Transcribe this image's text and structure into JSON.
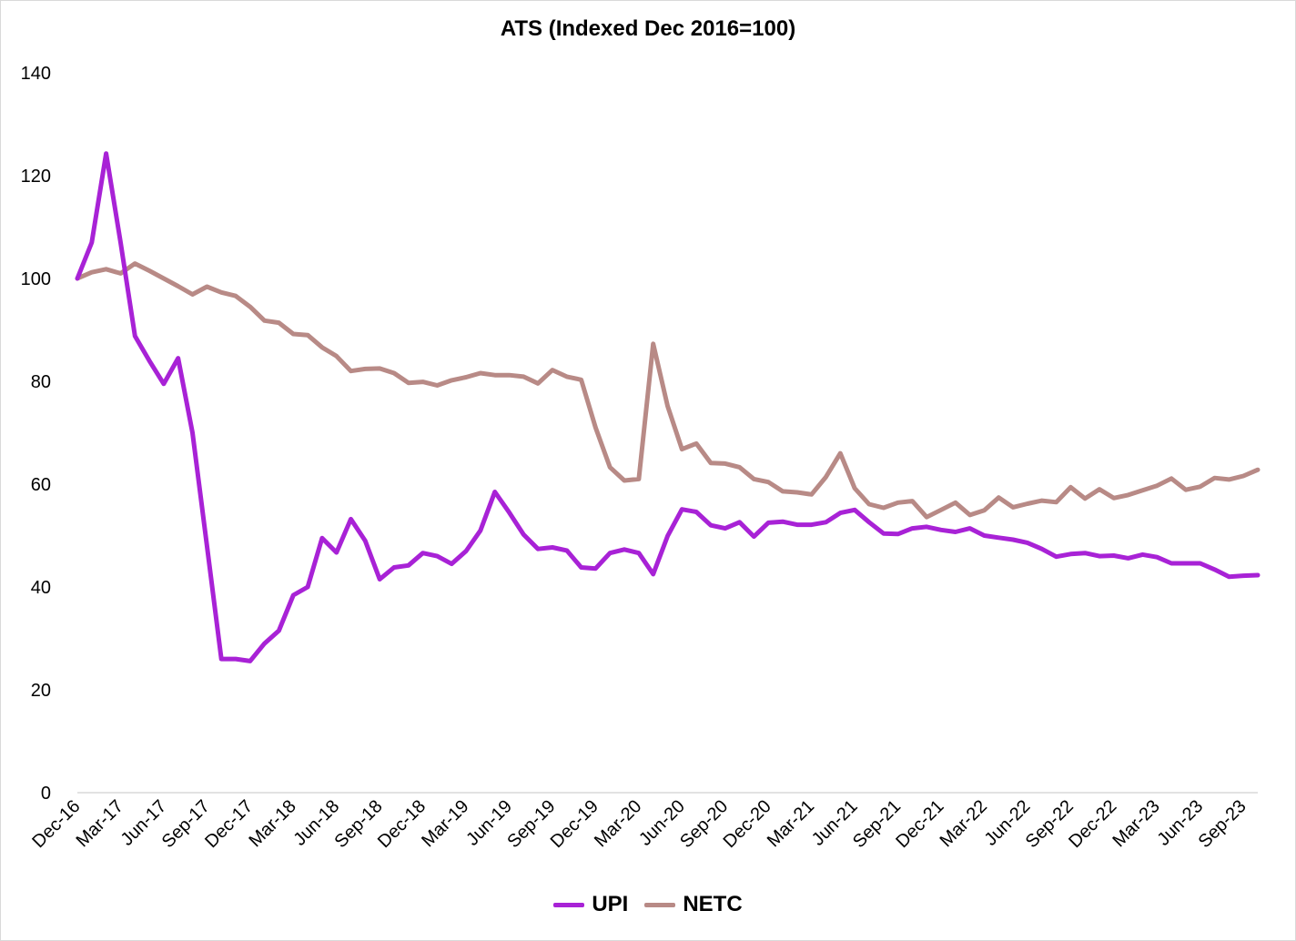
{
  "chart_data": {
    "type": "line",
    "title": "ATS (Indexed Dec 2016=100)",
    "xlabel": "",
    "ylabel": "",
    "ylim": [
      0,
      140
    ],
    "yticks": [
      0,
      20,
      40,
      60,
      80,
      100,
      120,
      140
    ],
    "grid": false,
    "legend_position": "bottom",
    "x_tick_labels": [
      "Dec-16",
      "Mar-17",
      "Jun-17",
      "Sep-17",
      "Dec-17",
      "Mar-18",
      "Jun-18",
      "Sep-18",
      "Dec-18",
      "Mar-19",
      "Jun-19",
      "Sep-19",
      "Dec-19",
      "Mar-20",
      "Jun-20",
      "Sep-20",
      "Dec-20",
      "Mar-21",
      "Jun-21",
      "Sep-21",
      "Dec-21",
      "Mar-22",
      "Jun-22",
      "Sep-22",
      "Dec-22",
      "Mar-23",
      "Jun-23",
      "Sep-23"
    ],
    "x": [
      "Dec-16",
      "Jan-17",
      "Feb-17",
      "Mar-17",
      "Apr-17",
      "May-17",
      "Jun-17",
      "Jul-17",
      "Aug-17",
      "Sep-17",
      "Oct-17",
      "Nov-17",
      "Dec-17",
      "Jan-18",
      "Feb-18",
      "Mar-18",
      "Apr-18",
      "May-18",
      "Jun-18",
      "Jul-18",
      "Aug-18",
      "Sep-18",
      "Oct-18",
      "Nov-18",
      "Dec-18",
      "Jan-19",
      "Feb-19",
      "Mar-19",
      "Apr-19",
      "May-19",
      "Jun-19",
      "Jul-19",
      "Aug-19",
      "Sep-19",
      "Oct-19",
      "Nov-19",
      "Dec-19",
      "Jan-20",
      "Feb-20",
      "Mar-20",
      "Apr-20",
      "May-20",
      "Jun-20",
      "Jul-20",
      "Aug-20",
      "Sep-20",
      "Oct-20",
      "Nov-20",
      "Dec-20",
      "Jan-21",
      "Feb-21",
      "Mar-21",
      "Apr-21",
      "May-21",
      "Jun-21",
      "Jul-21",
      "Aug-21",
      "Sep-21",
      "Oct-21",
      "Nov-21",
      "Dec-21",
      "Jan-22",
      "Feb-22",
      "Mar-22",
      "Apr-22",
      "May-22",
      "Jun-22",
      "Jul-22",
      "Aug-22",
      "Sep-22",
      "Oct-22",
      "Nov-22",
      "Dec-22",
      "Jan-23",
      "Feb-23",
      "Mar-23",
      "Apr-23",
      "May-23",
      "Jun-23",
      "Jul-23",
      "Aug-23",
      "Sep-23",
      "Oct-23"
    ],
    "series": [
      {
        "name": "UPI",
        "color": "#a822d6",
        "values": [
          100,
          107,
          124.3,
          107,
          88.8,
          84,
          79.5,
          84.5,
          70,
          48,
          26,
          26,
          25.6,
          29,
          31.5,
          38.4,
          40,
          49.5,
          46.7,
          53.2,
          49,
          41.5,
          43.8,
          44.2,
          46.6,
          46,
          44.5,
          47,
          51,
          58.5,
          54.5,
          50.2,
          47.4,
          47.7,
          47.1,
          43.8,
          43.6,
          46.6,
          47.3,
          46.6,
          42.5,
          49.9,
          55.1,
          54.6,
          52,
          51.4,
          52.6,
          49.8,
          52.5,
          52.7,
          52.1,
          52.1,
          52.6,
          54.4,
          55,
          52.6,
          50.4,
          50.3,
          51.4,
          51.7,
          51.1,
          50.7,
          51.4,
          50,
          49.6,
          49.2,
          48.6,
          47.4,
          45.9,
          46.4,
          46.6,
          46,
          46.1,
          45.6,
          46.3,
          45.8,
          44.6,
          44.6,
          44.6,
          43.4,
          42,
          42.2,
          42.3
        ]
      },
      {
        "name": "NETC",
        "color": "#b88a86",
        "values": [
          100,
          101.2,
          101.8,
          101,
          102.9,
          101.5,
          100,
          98.5,
          96.9,
          98.4,
          97.3,
          96.6,
          94.5,
          91.8,
          91.4,
          89.2,
          89,
          86.6,
          84.9,
          82,
          82.4,
          82.5,
          81.6,
          79.7,
          79.9,
          79.2,
          80.2,
          80.8,
          81.6,
          81.2,
          81.2,
          80.9,
          79.6,
          82.2,
          80.9,
          80.3,
          71,
          63.3,
          60.7,
          61,
          87.3,
          75.2,
          66.8,
          67.9,
          64.1,
          64,
          63.3,
          61,
          60.4,
          58.6,
          58.4,
          58,
          61.4,
          66,
          59.2,
          56.1,
          55.4,
          56.4,
          56.7,
          53.6,
          55,
          56.4,
          54,
          54.9,
          57.4,
          55.5,
          56.2,
          56.8,
          56.5,
          59.4,
          57.2,
          59,
          57.3,
          57.9,
          58.8,
          59.7,
          61.1,
          58.9,
          59.5,
          61.2,
          60.9,
          61.6,
          62.8
        ]
      }
    ]
  }
}
